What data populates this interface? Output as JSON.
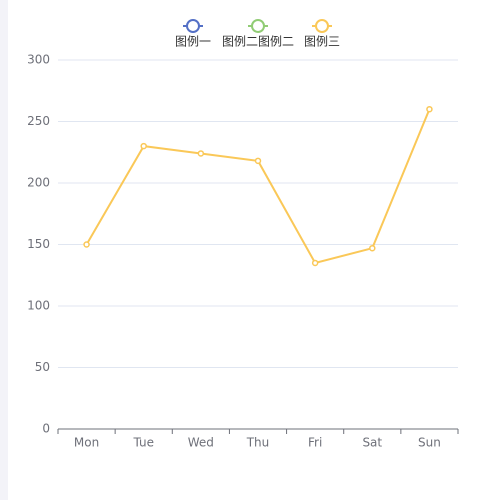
{
  "chart_data": {
    "type": "line",
    "categories": [
      "Mon",
      "Tue",
      "Wed",
      "Thu",
      "Fri",
      "Sat",
      "Sun"
    ],
    "series": [
      {
        "name": "图例一",
        "color": "#5470c6",
        "values": [
          null,
          null,
          null,
          null,
          null,
          null,
          null
        ]
      },
      {
        "name": "图例二图例二",
        "color": "#91cc75",
        "values": [
          null,
          null,
          null,
          null,
          null,
          null,
          null
        ]
      },
      {
        "name": "图例三",
        "color": "#fac858",
        "values": [
          150,
          230,
          224,
          218,
          135,
          147,
          260
        ]
      }
    ],
    "ylim": [
      0,
      300
    ],
    "yticks": [
      0,
      50,
      100,
      150,
      200,
      250,
      300
    ],
    "grid": true
  }
}
